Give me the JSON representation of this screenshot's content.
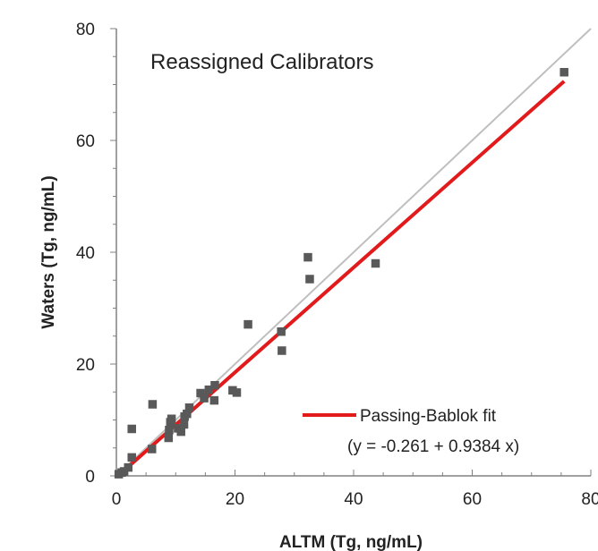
{
  "chart_data": {
    "type": "scatter",
    "title": "Reassigned Calibrators",
    "xlabel": "ALTM (Tg, ng/mL)",
    "ylabel": "Waters (Tg, ng/mL)",
    "xlim": [
      0,
      80
    ],
    "ylim": [
      0,
      80
    ],
    "x_ticks": [
      "0",
      "20",
      "40",
      "60",
      "80"
    ],
    "y_ticks": [
      "0",
      "20",
      "40",
      "60",
      "80"
    ],
    "grid": false,
    "legend": {
      "position": "bottom-right",
      "entries": [
        "Passing-Bablok fit",
        "(y = -0.261 + 0.9384 x)"
      ]
    },
    "colors": {
      "points": "#595959",
      "fit": "#e31a1c",
      "identity": "#bfbfbf",
      "axis": "#808080"
    },
    "fit": {
      "intercept": -0.261,
      "slope": 0.9384,
      "x_range": [
        0,
        75.5
      ]
    },
    "identity_line": {
      "x_range": [
        0,
        80
      ]
    },
    "series": [
      {
        "points": [
          [
            0.4,
            0.3
          ],
          [
            0.9,
            0.6
          ],
          [
            1.3,
            0.8
          ],
          [
            2.0,
            1.5
          ],
          [
            2.6,
            3.3
          ],
          [
            2.6,
            8.4
          ],
          [
            6.0,
            4.8
          ],
          [
            6.1,
            12.8
          ],
          [
            8.8,
            6.8
          ],
          [
            8.9,
            8.2
          ],
          [
            9.1,
            9.6
          ],
          [
            9.3,
            10.2
          ],
          [
            10.4,
            8.5
          ],
          [
            10.9,
            7.9
          ],
          [
            11.4,
            9.2
          ],
          [
            11.5,
            10.6
          ],
          [
            11.9,
            11.1
          ],
          [
            12.3,
            12.2
          ],
          [
            14.2,
            14.8
          ],
          [
            14.8,
            13.9
          ],
          [
            15.6,
            15.4
          ],
          [
            16.5,
            13.5
          ],
          [
            16.6,
            16.2
          ],
          [
            19.6,
            15.3
          ],
          [
            20.3,
            14.9
          ],
          [
            22.2,
            27.1
          ],
          [
            27.8,
            25.8
          ],
          [
            27.9,
            22.4
          ],
          [
            32.3,
            39.1
          ],
          [
            32.6,
            35.2
          ],
          [
            43.7,
            38.0
          ],
          [
            75.5,
            72.2
          ]
        ]
      }
    ]
  }
}
